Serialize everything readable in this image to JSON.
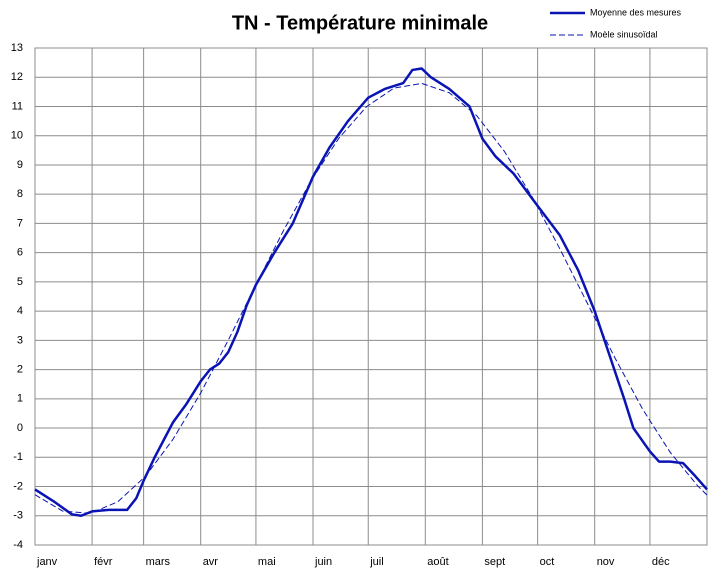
{
  "chart_data": {
    "type": "line",
    "title": "TN - Température minimale",
    "xlim": [
      0,
      365
    ],
    "xticks": [
      {
        "value": 0,
        "label": "janv"
      },
      {
        "value": 31,
        "label": "févr"
      },
      {
        "value": 59,
        "label": "mars"
      },
      {
        "value": 90,
        "label": "avr"
      },
      {
        "value": 120,
        "label": "mai"
      },
      {
        "value": 151,
        "label": "juin"
      },
      {
        "value": 181,
        "label": "juil"
      },
      {
        "value": 212,
        "label": "août"
      },
      {
        "value": 243,
        "label": "sept"
      },
      {
        "value": 273,
        "label": "oct"
      },
      {
        "value": 304,
        "label": "nov"
      },
      {
        "value": 334,
        "label": "déc"
      }
    ],
    "ylim": [
      -4,
      13
    ],
    "yticks": [
      -4,
      -3,
      -2,
      -1,
      0,
      1,
      2,
      3,
      4,
      5,
      6,
      7,
      8,
      9,
      10,
      11,
      12,
      13
    ],
    "grid": true,
    "legend": "top-right",
    "series": [
      {
        "name": "Moyenne des mesures",
        "color": "#0a14b4",
        "style": "solid",
        "x": [
          0,
          10,
          20,
          25,
          31,
          40,
          50,
          55,
          59,
          65,
          70,
          75,
          82,
          90,
          95,
          100,
          105,
          110,
          115,
          120,
          130,
          140,
          151,
          160,
          170,
          181,
          190,
          200,
          205,
          210,
          215,
          225,
          236,
          243,
          250,
          260,
          273,
          285,
          295,
          304,
          312,
          320,
          325,
          334,
          339,
          345,
          352,
          358,
          365
        ],
        "values": [
          -2.1,
          -2.5,
          -2.95,
          -3.0,
          -2.85,
          -2.8,
          -2.8,
          -2.4,
          -1.8,
          -1.0,
          -0.4,
          0.2,
          0.8,
          1.6,
          2.0,
          2.2,
          2.6,
          3.3,
          4.2,
          4.9,
          6.0,
          7.0,
          8.6,
          9.6,
          10.5,
          11.3,
          11.6,
          11.8,
          12.25,
          12.3,
          12.0,
          11.6,
          11.0,
          9.9,
          9.3,
          8.7,
          7.6,
          6.6,
          5.4,
          4.0,
          2.5,
          1.0,
          0.0,
          -0.8,
          -1.15,
          -1.15,
          -1.2,
          -1.6,
          -2.1
        ]
      },
      {
        "name": "Moèle sinusoïdal",
        "color": "#0a14b4",
        "style": "dashed",
        "x": [
          0,
          15,
          30,
          45,
          60,
          75,
          90,
          105,
          120,
          135,
          150,
          165,
          180,
          195,
          210,
          225,
          240,
          255,
          270,
          285,
          300,
          315,
          330,
          345,
          360,
          365
        ],
        "values": [
          -2.28,
          -2.84,
          -2.92,
          -2.52,
          -1.65,
          -0.38,
          1.2,
          3.01,
          4.9,
          6.76,
          8.47,
          9.91,
          10.99,
          11.63,
          11.79,
          11.47,
          10.68,
          9.46,
          7.91,
          6.14,
          4.27,
          2.4,
          0.65,
          -0.83,
          -1.98,
          -2.29
        ]
      }
    ]
  }
}
